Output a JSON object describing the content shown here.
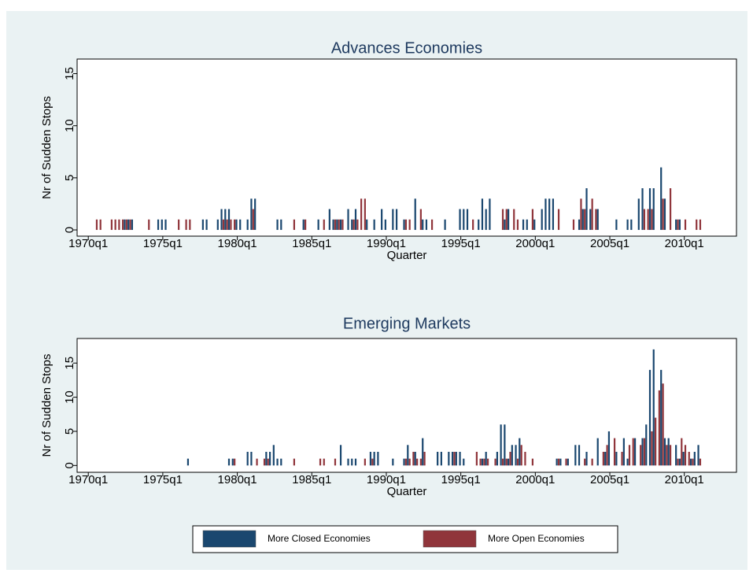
{
  "chart_data": [
    {
      "type": "bar",
      "title": "Advances Economies",
      "x_label": "Quarter",
      "y_label": "Nr of Sudden Stops",
      "xlim": [
        37,
        214
      ],
      "ylim": [
        -0.6,
        16.4
      ],
      "xticks": [
        {
          "value": 40,
          "label": "1970q1"
        },
        {
          "value": 60,
          "label": "1975q1"
        },
        {
          "value": 80,
          "label": "1980q1"
        },
        {
          "value": 100,
          "label": "1985q1"
        },
        {
          "value": 120,
          "label": "1990q1"
        },
        {
          "value": 140,
          "label": "1995q1"
        },
        {
          "value": 160,
          "label": "2000q1"
        },
        {
          "value": 180,
          "label": "2005q1"
        },
        {
          "value": 200,
          "label": "2010q1"
        }
      ],
      "yticks": [
        0,
        5,
        10,
        15
      ],
      "series": [
        {
          "color": "#1a476f",
          "x": [
            50,
            51,
            52,
            59,
            60,
            61,
            71,
            72,
            75,
            76,
            77,
            78,
            80,
            81,
            83,
            84,
            85,
            91,
            92,
            98,
            102,
            105,
            106,
            107,
            108,
            110,
            111,
            112,
            115,
            117,
            119,
            120,
            122,
            123,
            125,
            128,
            130,
            131,
            136,
            140,
            141,
            142,
            145,
            146,
            147,
            148,
            152,
            153,
            157,
            158,
            160,
            162,
            163,
            164,
            165,
            172,
            173,
            174,
            175,
            177,
            182,
            185,
            186,
            188,
            189,
            191,
            192,
            194,
            195,
            198,
            199
          ],
          "values": [
            1,
            1,
            1,
            1,
            1,
            1,
            1,
            1,
            1,
            2,
            2,
            2,
            1,
            1,
            1,
            3,
            3,
            1,
            1,
            1,
            1,
            2,
            1,
            1,
            1,
            2,
            1,
            2,
            1,
            1,
            2,
            1,
            2,
            2,
            1,
            3,
            1,
            1,
            1,
            2,
            2,
            2,
            1,
            3,
            2,
            3,
            1,
            2,
            1,
            1,
            1,
            2,
            3,
            3,
            3,
            1,
            2,
            4,
            2,
            2,
            1,
            1,
            1,
            3,
            4,
            4,
            4,
            6,
            3,
            1,
            1
          ]
        },
        {
          "color": "#90353b",
          "x": [
            42,
            43,
            46,
            47,
            48,
            49,
            50,
            51,
            56,
            64,
            66,
            67,
            76,
            77,
            78,
            79,
            84,
            95,
            98,
            103,
            106,
            107,
            108,
            111,
            112,
            113,
            114,
            125,
            126,
            129,
            132,
            143,
            151,
            152,
            154,
            155,
            159,
            166,
            170,
            172,
            173,
            175,
            176,
            189,
            190,
            191,
            194,
            196,
            198,
            200,
            203,
            204
          ],
          "values": [
            1,
            1,
            1,
            1,
            1,
            1,
            1,
            1,
            1,
            1,
            1,
            1,
            1,
            1,
            1,
            1,
            2,
            1,
            1,
            1,
            1,
            1,
            1,
            1,
            1,
            3,
            3,
            1,
            1,
            2,
            1,
            1,
            2,
            2,
            2,
            1,
            2,
            2,
            1,
            3,
            2,
            3,
            2,
            2,
            2,
            2,
            3,
            4,
            1,
            1,
            1,
            1
          ]
        }
      ]
    },
    {
      "type": "bar",
      "title": "Emerging Markets",
      "x_label": "Quarter",
      "y_label": "Nr of Sudden Stops",
      "xlim": [
        37,
        214
      ],
      "ylim": [
        -1,
        18.6
      ],
      "xticks": [
        {
          "value": 40,
          "label": "1970q1"
        },
        {
          "value": 60,
          "label": "1975q1"
        },
        {
          "value": 80,
          "label": "1980q1"
        },
        {
          "value": 100,
          "label": "1985q1"
        },
        {
          "value": 120,
          "label": "1990q1"
        },
        {
          "value": 140,
          "label": "1995q1"
        },
        {
          "value": 160,
          "label": "2000q1"
        },
        {
          "value": 180,
          "label": "2005q1"
        },
        {
          "value": 200,
          "label": "2010q1"
        }
      ],
      "yticks": [
        0,
        5,
        10,
        15
      ],
      "series": [
        {
          "name": "More Closed Economies",
          "color": "#1a476f",
          "x": [
            67,
            78,
            79,
            83,
            84,
            88,
            89,
            90,
            91,
            92,
            108,
            110,
            111,
            112,
            116,
            117,
            118,
            122,
            125,
            126,
            128,
            130,
            134,
            135,
            137,
            138,
            139,
            140,
            141,
            146,
            147,
            150,
            151,
            152,
            153,
            154,
            155,
            156,
            166,
            167,
            169,
            171,
            172,
            174,
            177,
            179,
            180,
            182,
            184,
            185,
            187,
            189,
            190,
            191,
            192,
            194,
            195,
            196,
            198,
            199,
            200,
            202,
            203,
            204
          ],
          "values": [
            1,
            1,
            1,
            2,
            2,
            2,
            2,
            3,
            1,
            1,
            3,
            1,
            1,
            1,
            2,
            2,
            2,
            1,
            1,
            3,
            2,
            4,
            2,
            2,
            2,
            2,
            2,
            2,
            1,
            1,
            2,
            2,
            6,
            6,
            1,
            3,
            3,
            4,
            1,
            1,
            1,
            3,
            3,
            2,
            4,
            2,
            5,
            2,
            4,
            1,
            4,
            4,
            6,
            14,
            17,
            14,
            4,
            4,
            3,
            1,
            2,
            1,
            2,
            3
          ]
        },
        {
          "name": "More Open Economies",
          "color": "#90353b",
          "x": [
            79,
            85,
            87,
            88,
            95,
            102,
            103,
            106,
            114,
            116,
            125,
            126,
            127,
            128,
            129,
            130,
            138,
            144,
            145,
            146,
            147,
            149,
            151,
            152,
            153,
            155,
            156,
            157,
            159,
            166,
            168,
            173,
            175,
            178,
            179,
            181,
            183,
            185,
            186,
            188,
            189,
            191,
            192,
            193,
            194,
            195,
            196,
            198,
            199,
            200,
            201,
            202,
            204
          ],
          "values": [
            1,
            1,
            1,
            1,
            1,
            1,
            1,
            1,
            1,
            1,
            1,
            1,
            2,
            1,
            1,
            2,
            2,
            2,
            1,
            1,
            1,
            1,
            1,
            1,
            2,
            1,
            3,
            2,
            1,
            1,
            1,
            1,
            1,
            2,
            3,
            4,
            2,
            3,
            4,
            3,
            4,
            5,
            7,
            11,
            12,
            3,
            3,
            1,
            4,
            3,
            2,
            1,
            1
          ]
        }
      ]
    }
  ]
}
